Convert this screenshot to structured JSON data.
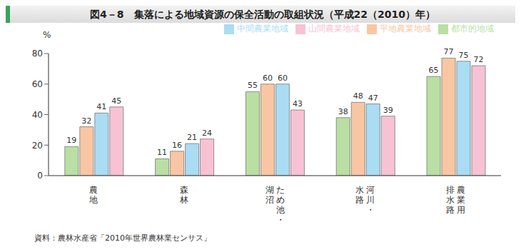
{
  "chart_data": {
    "type": "bar",
    "title": "図4－8　集落による地域資源の保全活動の取組状況（平成22（2010）年）",
    "y_label": "%",
    "annotations": [
      "資料：農林水産省「2010年世界農林業センサス」"
    ],
    "categories": [
      "農地",
      "森林",
      "ため池・湖沼",
      "河川・水路",
      "農業用排水路"
    ],
    "series": [
      {
        "name": "都市的地域",
        "color": "#b9dfa3",
        "values": [
          19,
          11,
          55,
          38,
          65
        ]
      },
      {
        "name": "平地農業地域",
        "color": "#f9c6a3",
        "values": [
          32,
          16,
          60,
          48,
          77
        ]
      },
      {
        "name": "中間農業地域",
        "color": "#aadcf3",
        "values": [
          41,
          21,
          60,
          47,
          75
        ]
      },
      {
        "name": "山間農業地域",
        "color": "#f7c2d4",
        "values": [
          45,
          24,
          43,
          39,
          72
        ]
      }
    ],
    "ylim": [
      0,
      80
    ],
    "yticks": [
      0,
      20,
      40,
      60,
      80
    ],
    "grid": false,
    "data_labels": true,
    "legend": "top"
  }
}
